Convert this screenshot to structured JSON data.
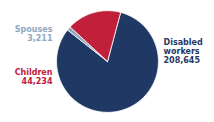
{
  "chart_data": {
    "type": "pie",
    "categories": [
      "Disabled\nworkers",
      "Spouses",
      "Children"
    ],
    "values": [
      208645,
      3211,
      44234
    ],
    "value_labels": [
      "208,645",
      "3,211",
      "44,234"
    ],
    "colors": [
      "#1f3864",
      "#8fa8c0",
      "#c0203a"
    ],
    "data_labels": true
  }
}
